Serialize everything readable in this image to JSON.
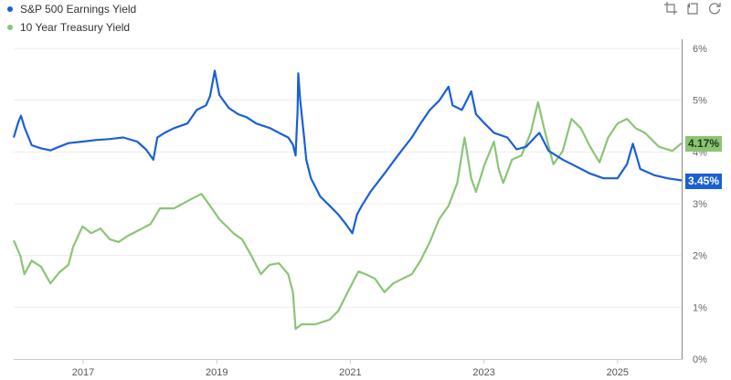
{
  "legend": [
    {
      "label": "S&P 500 Earnings Yield",
      "color": "#1a5fd6"
    },
    {
      "label": "10 Year Treasury Yield",
      "color": "#8cc476"
    }
  ],
  "toolbar": {
    "icons": [
      "crop-zoom-icon",
      "zoom-reset-icon",
      "refresh-icon"
    ]
  },
  "last_values": {
    "treasury": {
      "label": "4.17%",
      "color": "#8cc476",
      "text_color": "#1e3a0f"
    },
    "earnings": {
      "label": "3.45%",
      "color": "#1a5fd6",
      "text_color": "#ffffff"
    }
  },
  "chart_data": {
    "type": "line",
    "title": "",
    "xlabel": "",
    "ylabel": "",
    "x_ticks": [
      "2017",
      "2019",
      "2021",
      "2023",
      "2025"
    ],
    "y_ticks": [
      "0%",
      "1%",
      "2%",
      "3%",
      "4%",
      "5%",
      "6%"
    ],
    "ylim": [
      0,
      6
    ],
    "xlim": [
      2015.96,
      2025.96
    ],
    "grid": true,
    "legend_position": "top-left",
    "series": [
      {
        "name": "S&P 500 Earnings Yield",
        "color": "#1a5fd6",
        "last": 3.45,
        "points": [
          [
            2015.96,
            4.28
          ],
          [
            2016.03,
            4.58
          ],
          [
            2016.07,
            4.7
          ],
          [
            2016.12,
            4.48
          ],
          [
            2016.23,
            4.13
          ],
          [
            2016.37,
            4.07
          ],
          [
            2016.51,
            4.03
          ],
          [
            2016.64,
            4.1
          ],
          [
            2016.78,
            4.17
          ],
          [
            2016.99,
            4.2
          ],
          [
            2017.19,
            4.23
          ],
          [
            2017.4,
            4.25
          ],
          [
            2017.6,
            4.28
          ],
          [
            2017.81,
            4.2
          ],
          [
            2017.94,
            4.05
          ],
          [
            2018.05,
            3.85
          ],
          [
            2018.11,
            4.28
          ],
          [
            2018.22,
            4.37
          ],
          [
            2018.36,
            4.46
          ],
          [
            2018.56,
            4.55
          ],
          [
            2018.7,
            4.81
          ],
          [
            2018.84,
            4.9
          ],
          [
            2018.9,
            5.08
          ],
          [
            2018.97,
            5.57
          ],
          [
            2019.04,
            5.1
          ],
          [
            2019.18,
            4.85
          ],
          [
            2019.32,
            4.73
          ],
          [
            2019.45,
            4.67
          ],
          [
            2019.59,
            4.55
          ],
          [
            2019.8,
            4.46
          ],
          [
            2019.93,
            4.37
          ],
          [
            2020.07,
            4.28
          ],
          [
            2020.14,
            4.14
          ],
          [
            2020.18,
            3.93
          ],
          [
            2020.21,
            4.81
          ],
          [
            2020.22,
            5.52
          ],
          [
            2020.25,
            4.99
          ],
          [
            2020.3,
            4.37
          ],
          [
            2020.34,
            3.85
          ],
          [
            2020.41,
            3.49
          ],
          [
            2020.55,
            3.14
          ],
          [
            2020.69,
            2.96
          ],
          [
            2020.82,
            2.79
          ],
          [
            2020.93,
            2.61
          ],
          [
            2021.03,
            2.43
          ],
          [
            2021.1,
            2.79
          ],
          [
            2021.17,
            2.96
          ],
          [
            2021.3,
            3.23
          ],
          [
            2021.51,
            3.58
          ],
          [
            2021.71,
            3.93
          ],
          [
            2021.92,
            4.28
          ],
          [
            2022.05,
            4.55
          ],
          [
            2022.19,
            4.81
          ],
          [
            2022.33,
            4.99
          ],
          [
            2022.47,
            5.26
          ],
          [
            2022.53,
            4.9
          ],
          [
            2022.67,
            4.81
          ],
          [
            2022.81,
            5.17
          ],
          [
            2022.88,
            4.73
          ],
          [
            2023.01,
            4.55
          ],
          [
            2023.15,
            4.37
          ],
          [
            2023.35,
            4.28
          ],
          [
            2023.49,
            4.05
          ],
          [
            2023.63,
            4.1
          ],
          [
            2023.76,
            4.28
          ],
          [
            2023.83,
            4.37
          ],
          [
            2023.97,
            4.02
          ],
          [
            2024.18,
            3.85
          ],
          [
            2024.38,
            3.72
          ],
          [
            2024.59,
            3.58
          ],
          [
            2024.79,
            3.49
          ],
          [
            2025.0,
            3.49
          ],
          [
            2025.14,
            3.76
          ],
          [
            2025.23,
            4.16
          ],
          [
            2025.34,
            3.67
          ],
          [
            2025.55,
            3.55
          ],
          [
            2025.75,
            3.49
          ],
          [
            2025.96,
            3.45
          ]
        ]
      },
      {
        "name": "10 Year Treasury Yield",
        "color": "#8cc476",
        "last": 4.17,
        "points": [
          [
            2015.96,
            2.29
          ],
          [
            2016.06,
            1.99
          ],
          [
            2016.12,
            1.64
          ],
          [
            2016.23,
            1.9
          ],
          [
            2016.37,
            1.78
          ],
          [
            2016.51,
            1.46
          ],
          [
            2016.64,
            1.67
          ],
          [
            2016.78,
            1.82
          ],
          [
            2016.85,
            2.17
          ],
          [
            2016.99,
            2.56
          ],
          [
            2017.12,
            2.43
          ],
          [
            2017.26,
            2.52
          ],
          [
            2017.4,
            2.31
          ],
          [
            2017.53,
            2.26
          ],
          [
            2017.67,
            2.38
          ],
          [
            2017.88,
            2.52
          ],
          [
            2018.01,
            2.61
          ],
          [
            2018.15,
            2.91
          ],
          [
            2018.36,
            2.91
          ],
          [
            2018.56,
            3.05
          ],
          [
            2018.77,
            3.19
          ],
          [
            2018.9,
            2.96
          ],
          [
            2019.04,
            2.7
          ],
          [
            2019.25,
            2.43
          ],
          [
            2019.38,
            2.31
          ],
          [
            2019.52,
            1.99
          ],
          [
            2019.66,
            1.64
          ],
          [
            2019.79,
            1.82
          ],
          [
            2019.93,
            1.85
          ],
          [
            2020.07,
            1.64
          ],
          [
            2020.14,
            1.29
          ],
          [
            2020.18,
            0.58
          ],
          [
            2020.27,
            0.67
          ],
          [
            2020.48,
            0.67
          ],
          [
            2020.69,
            0.76
          ],
          [
            2020.82,
            0.93
          ],
          [
            2020.96,
            1.29
          ],
          [
            2021.12,
            1.69
          ],
          [
            2021.23,
            1.64
          ],
          [
            2021.37,
            1.55
          ],
          [
            2021.51,
            1.29
          ],
          [
            2021.64,
            1.46
          ],
          [
            2021.78,
            1.55
          ],
          [
            2021.92,
            1.64
          ],
          [
            2022.05,
            1.9
          ],
          [
            2022.19,
            2.26
          ],
          [
            2022.33,
            2.7
          ],
          [
            2022.47,
            2.96
          ],
          [
            2022.6,
            3.4
          ],
          [
            2022.71,
            4.28
          ],
          [
            2022.81,
            3.49
          ],
          [
            2022.88,
            3.23
          ],
          [
            2023.01,
            3.76
          ],
          [
            2023.15,
            4.2
          ],
          [
            2023.22,
            3.67
          ],
          [
            2023.29,
            3.4
          ],
          [
            2023.42,
            3.85
          ],
          [
            2023.56,
            3.93
          ],
          [
            2023.7,
            4.37
          ],
          [
            2023.81,
            4.96
          ],
          [
            2023.9,
            4.46
          ],
          [
            2024.04,
            3.76
          ],
          [
            2024.18,
            4.02
          ],
          [
            2024.31,
            4.64
          ],
          [
            2024.45,
            4.46
          ],
          [
            2024.59,
            4.1
          ],
          [
            2024.73,
            3.8
          ],
          [
            2024.86,
            4.28
          ],
          [
            2025.0,
            4.55
          ],
          [
            2025.14,
            4.64
          ],
          [
            2025.27,
            4.46
          ],
          [
            2025.41,
            4.37
          ],
          [
            2025.62,
            4.1
          ],
          [
            2025.82,
            4.02
          ],
          [
            2025.96,
            4.17
          ]
        ]
      }
    ]
  }
}
